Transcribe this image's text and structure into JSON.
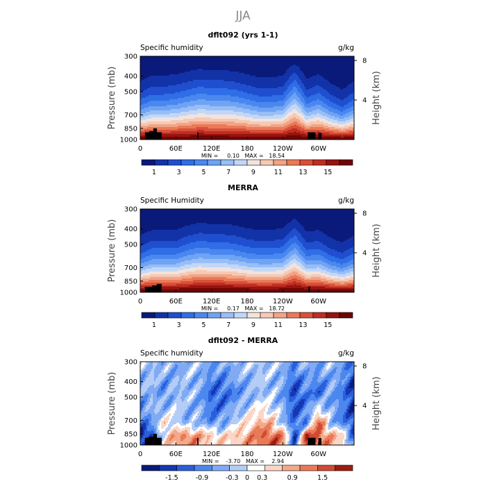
{
  "figure_title": "JJA",
  "palettes": {
    "humidity": [
      "#0a1a7a",
      "#1232a8",
      "#1f4fcf",
      "#2f6ee6",
      "#4a88ef",
      "#6fa3f3",
      "#98bef6",
      "#c2d7f8",
      "#f3e3dc",
      "#f6c9b4",
      "#f2a485",
      "#ea7a58",
      "#d9503a",
      "#be2e22",
      "#98130f",
      "#6e0606"
    ],
    "difference": [
      "#0a1a7a",
      "#1637b2",
      "#2a5fdc",
      "#4c87ef",
      "#80aaf3",
      "#b4cdf7",
      "#ffffff",
      "#fbd6c6",
      "#f4a98a",
      "#e97a58",
      "#d14a34",
      "#9c1c12"
    ]
  },
  "chart_data": [
    {
      "type": "heatmap",
      "title": "dflt092 (yrs 1-1)",
      "left_label": "Specific humidity",
      "right_label": "g/kg",
      "ylabel": "Pressure (mb)",
      "ylabel_right": "Height (km)",
      "x_ticks": [
        "0",
        "60E",
        "120E",
        "180",
        "120W",
        "60W"
      ],
      "x_tick_values": [
        0,
        60,
        120,
        180,
        240,
        300
      ],
      "xlim": [
        0,
        360
      ],
      "y_ticks": [
        "300",
        "400",
        "500",
        "700",
        "850",
        "1000"
      ],
      "y_tick_values": [
        300,
        400,
        500,
        700,
        850,
        1000
      ],
      "ylim": [
        300,
        1000
      ],
      "y_scale": "log",
      "height_ticks": [
        "8",
        "4"
      ],
      "height_tick_values": [
        8,
        4
      ],
      "stats": "MIN =     0.10   MAX =   18.54",
      "min": 0.1,
      "max": 18.54,
      "colorbar_labels": [
        "1",
        "3",
        "5",
        "7",
        "9",
        "11",
        "13",
        "15"
      ],
      "colorbar_label_values": [
        1,
        3,
        5,
        7,
        9,
        11,
        13,
        15
      ],
      "colorbar_levels": [
        0,
        17
      ],
      "palette": "humidity",
      "longitudes": [
        0,
        20,
        40,
        60,
        80,
        100,
        120,
        140,
        160,
        180,
        200,
        220,
        240,
        260,
        280,
        300,
        320,
        340,
        360
      ],
      "moisture_profile": [
        0.9,
        1.05,
        1.05,
        1.1,
        1.2,
        1.3,
        1.25,
        1.25,
        1.2,
        1.1,
        1.0,
        1.0,
        1.05,
        1.6,
        0.95,
        1.1,
        0.85,
        0.7,
        0.9
      ],
      "surface_value": 17.5,
      "topography": [
        {
          "lon_start": 8,
          "lon_end": 15,
          "pressure": 900
        },
        {
          "lon_start": 15,
          "lon_end": 22,
          "pressure": 885
        },
        {
          "lon_start": 22,
          "lon_end": 28,
          "pressure": 850
        },
        {
          "lon_start": 28,
          "lon_end": 36,
          "pressure": 900
        },
        {
          "lon_start": 96,
          "lon_end": 98,
          "pressure": 900
        },
        {
          "lon_start": 282,
          "lon_end": 295,
          "pressure": 900
        },
        {
          "lon_start": 300,
          "lon_end": 305,
          "pressure": 905
        }
      ]
    },
    {
      "type": "heatmap",
      "title": "MERRA",
      "left_label": "Specific Humidity",
      "right_label": "g/kg",
      "ylabel": "Pressure (mb)",
      "ylabel_right": "Height (km)",
      "x_ticks": [
        "0",
        "60E",
        "120E",
        "180",
        "120W",
        "60W"
      ],
      "x_tick_values": [
        0,
        60,
        120,
        180,
        240,
        300
      ],
      "xlim": [
        0,
        360
      ],
      "y_ticks": [
        "300",
        "400",
        "500",
        "700",
        "850",
        "1000"
      ],
      "y_tick_values": [
        300,
        400,
        500,
        700,
        850,
        1000
      ],
      "ylim": [
        300,
        1000
      ],
      "y_scale": "log",
      "height_ticks": [
        "8",
        "4"
      ],
      "height_tick_values": [
        8,
        4
      ],
      "stats": "MIN =     0.17   MAX =   18.72",
      "min": 0.17,
      "max": 18.72,
      "colorbar_labels": [
        "1",
        "3",
        "5",
        "7",
        "9",
        "11",
        "13",
        "15"
      ],
      "colorbar_label_values": [
        1,
        3,
        5,
        7,
        9,
        11,
        13,
        15
      ],
      "colorbar_levels": [
        0,
        17
      ],
      "palette": "humidity",
      "longitudes": [
        0,
        20,
        40,
        60,
        80,
        100,
        120,
        140,
        160,
        180,
        200,
        220,
        240,
        260,
        280,
        300,
        320,
        340,
        360
      ],
      "moisture_profile": [
        0.85,
        1.0,
        1.0,
        1.0,
        1.15,
        1.25,
        1.2,
        1.2,
        1.15,
        1.05,
        1.0,
        1.0,
        1.05,
        1.45,
        0.95,
        1.0,
        0.8,
        0.7,
        0.85
      ],
      "surface_value": 17.8,
      "topography": [
        {
          "lon_start": 8,
          "lon_end": 20,
          "pressure": 925
        },
        {
          "lon_start": 20,
          "lon_end": 28,
          "pressure": 905
        },
        {
          "lon_start": 28,
          "lon_end": 36,
          "pressure": 885
        },
        {
          "lon_start": 283,
          "lon_end": 286,
          "pressure": 920
        }
      ]
    },
    {
      "type": "heatmap",
      "title": "dflt092 - MERRA",
      "left_label": "Specific humidity",
      "right_label": "g/kg",
      "ylabel": "Pressure (mb)",
      "ylabel_right": "Height (km)",
      "x_ticks": [
        "0",
        "60E",
        "120E",
        "180",
        "120W",
        "60W"
      ],
      "x_tick_values": [
        0,
        60,
        120,
        180,
        240,
        300
      ],
      "xlim": [
        0,
        360
      ],
      "y_ticks": [
        "300",
        "400",
        "500",
        "700",
        "850",
        "1000"
      ],
      "y_tick_values": [
        300,
        400,
        500,
        700,
        850,
        1000
      ],
      "ylim": [
        300,
        1000
      ],
      "y_scale": "log",
      "height_ticks": [
        "8",
        "4"
      ],
      "height_tick_values": [
        8,
        4
      ],
      "stats": "MIN =    -3.70   MAX =    2.94",
      "min": -3.7,
      "max": 2.94,
      "colorbar_labels": [
        "-1.5",
        "-0.9",
        "-0.3",
        "0",
        "0.3",
        "0.9",
        "1.5"
      ],
      "colorbar_label_values": [
        -1.5,
        -0.9,
        -0.3,
        0,
        0.3,
        0.9,
        1.5
      ],
      "colorbar_levels": [
        -2.1,
        2.1
      ],
      "palette": "difference",
      "longitudes": [
        0,
        20,
        40,
        60,
        80,
        100,
        120,
        140,
        160,
        180,
        200,
        220,
        240,
        260,
        280,
        300,
        320,
        340,
        360
      ],
      "surface_anomaly": [
        -1.8,
        -1.5,
        0.3,
        0.9,
        1.2,
        0.9,
        0.6,
        0.4,
        0.6,
        0.9,
        1.3,
        1.5,
        1.2,
        -1.5,
        1.8,
        1.4,
        0.9,
        0.6,
        -1.2
      ],
      "lower_anomaly": [
        -1.2,
        -0.6,
        0.3,
        0.0,
        -0.6,
        -0.3,
        -0.9,
        -0.6,
        0.0,
        0.3,
        0.9,
        0.6,
        -0.3,
        -1.2,
        -0.9,
        1.5,
        -0.3,
        -0.9,
        -1.5
      ],
      "mid_anomaly": [
        -0.6,
        -0.3,
        -0.9,
        -0.3,
        -0.3,
        -0.6,
        -1.2,
        -1.2,
        -0.9,
        -0.6,
        -0.3,
        -0.3,
        -0.6,
        -1.5,
        -0.9,
        -1.2,
        -0.6,
        -0.9,
        -1.8
      ],
      "upper_anomaly": [
        -0.3,
        -0.3,
        -0.3,
        -0.6,
        -0.3,
        -0.3,
        -0.6,
        -0.6,
        -0.3,
        -0.3,
        -0.2,
        -0.3,
        -0.3,
        -0.9,
        -0.3,
        -0.6,
        -0.3,
        -0.6,
        -1.2
      ],
      "topography": [
        {
          "lon_start": 8,
          "lon_end": 15,
          "pressure": 900
        },
        {
          "lon_start": 15,
          "lon_end": 22,
          "pressure": 885
        },
        {
          "lon_start": 22,
          "lon_end": 28,
          "pressure": 850
        },
        {
          "lon_start": 28,
          "lon_end": 36,
          "pressure": 900
        },
        {
          "lon_start": 96,
          "lon_end": 98,
          "pressure": 900
        },
        {
          "lon_start": 282,
          "lon_end": 295,
          "pressure": 900
        },
        {
          "lon_start": 300,
          "lon_end": 305,
          "pressure": 905
        }
      ]
    }
  ]
}
